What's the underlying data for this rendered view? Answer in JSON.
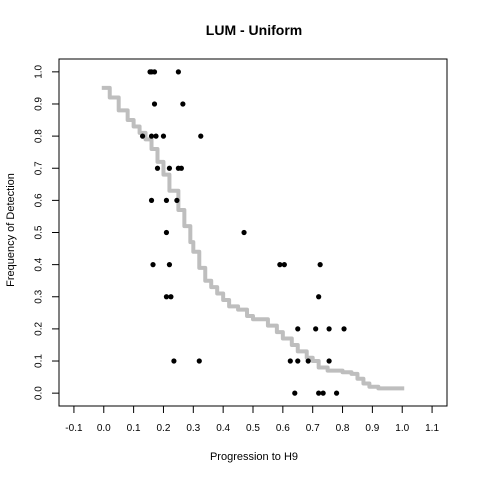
{
  "chart_data": {
    "type": "scatter",
    "title": "LUM - Uniform",
    "xlabel": "Progression to H9",
    "ylabel": "Frequency of Detection",
    "xlim": [
      -0.15,
      1.15
    ],
    "ylim": [
      -0.04,
      1.04
    ],
    "x_ticks": [
      "-0.1",
      "0.0",
      "0.1",
      "0.2",
      "0.3",
      "0.4",
      "0.5",
      "0.6",
      "0.7",
      "0.8",
      "0.9",
      "1.0",
      "1.1"
    ],
    "y_ticks": [
      "0.0",
      "0.1",
      "0.2",
      "0.3",
      "0.4",
      "0.5",
      "0.6",
      "0.7",
      "0.8",
      "0.9",
      "1.0"
    ],
    "grid": false,
    "series": [
      {
        "kind": "points",
        "color": "#000000",
        "points": [
          [
            0.155,
            1.0
          ],
          [
            0.16,
            1.0
          ],
          [
            0.17,
            1.0
          ],
          [
            0.25,
            1.0
          ],
          [
            0.17,
            0.9
          ],
          [
            0.265,
            0.9
          ],
          [
            0.13,
            0.8
          ],
          [
            0.16,
            0.8
          ],
          [
            0.175,
            0.8
          ],
          [
            0.2,
            0.8
          ],
          [
            0.325,
            0.8
          ],
          [
            0.18,
            0.7
          ],
          [
            0.22,
            0.7
          ],
          [
            0.25,
            0.7
          ],
          [
            0.26,
            0.7
          ],
          [
            0.16,
            0.6
          ],
          [
            0.21,
            0.6
          ],
          [
            0.245,
            0.6
          ],
          [
            0.21,
            0.5
          ],
          [
            0.47,
            0.5
          ],
          [
            0.165,
            0.4
          ],
          [
            0.22,
            0.4
          ],
          [
            0.59,
            0.4
          ],
          [
            0.605,
            0.4
          ],
          [
            0.725,
            0.4
          ],
          [
            0.21,
            0.3
          ],
          [
            0.225,
            0.3
          ],
          [
            0.72,
            0.3
          ],
          [
            0.65,
            0.2
          ],
          [
            0.71,
            0.2
          ],
          [
            0.755,
            0.2
          ],
          [
            0.805,
            0.2
          ],
          [
            0.235,
            0.1
          ],
          [
            0.32,
            0.1
          ],
          [
            0.625,
            0.1
          ],
          [
            0.65,
            0.1
          ],
          [
            0.685,
            0.1
          ],
          [
            0.755,
            0.1
          ],
          [
            0.64,
            0.0
          ],
          [
            0.72,
            0.0
          ],
          [
            0.735,
            0.0
          ],
          [
            0.78,
            0.0
          ]
        ]
      },
      {
        "kind": "line",
        "color": "#bebebe",
        "points": [
          [
            0.0,
            0.95
          ],
          [
            0.02,
            0.92
          ],
          [
            0.05,
            0.88
          ],
          [
            0.08,
            0.85
          ],
          [
            0.1,
            0.83
          ],
          [
            0.12,
            0.81
          ],
          [
            0.14,
            0.79
          ],
          [
            0.16,
            0.76
          ],
          [
            0.18,
            0.72
          ],
          [
            0.2,
            0.68
          ],
          [
            0.22,
            0.63
          ],
          [
            0.25,
            0.57
          ],
          [
            0.27,
            0.52
          ],
          [
            0.29,
            0.47
          ],
          [
            0.3,
            0.44
          ],
          [
            0.32,
            0.39
          ],
          [
            0.34,
            0.35
          ],
          [
            0.36,
            0.33
          ],
          [
            0.38,
            0.31
          ],
          [
            0.4,
            0.29
          ],
          [
            0.42,
            0.27
          ],
          [
            0.45,
            0.26
          ],
          [
            0.48,
            0.24
          ],
          [
            0.5,
            0.23
          ],
          [
            0.55,
            0.21
          ],
          [
            0.58,
            0.19
          ],
          [
            0.6,
            0.17
          ],
          [
            0.63,
            0.15
          ],
          [
            0.65,
            0.13
          ],
          [
            0.68,
            0.11
          ],
          [
            0.7,
            0.1
          ],
          [
            0.72,
            0.08
          ],
          [
            0.75,
            0.07
          ],
          [
            0.8,
            0.065
          ],
          [
            0.83,
            0.06
          ],
          [
            0.85,
            0.045
          ],
          [
            0.87,
            0.03
          ],
          [
            0.89,
            0.02
          ],
          [
            0.92,
            0.015
          ],
          [
            0.95,
            0.015
          ],
          [
            1.0,
            0.015
          ]
        ]
      }
    ]
  }
}
